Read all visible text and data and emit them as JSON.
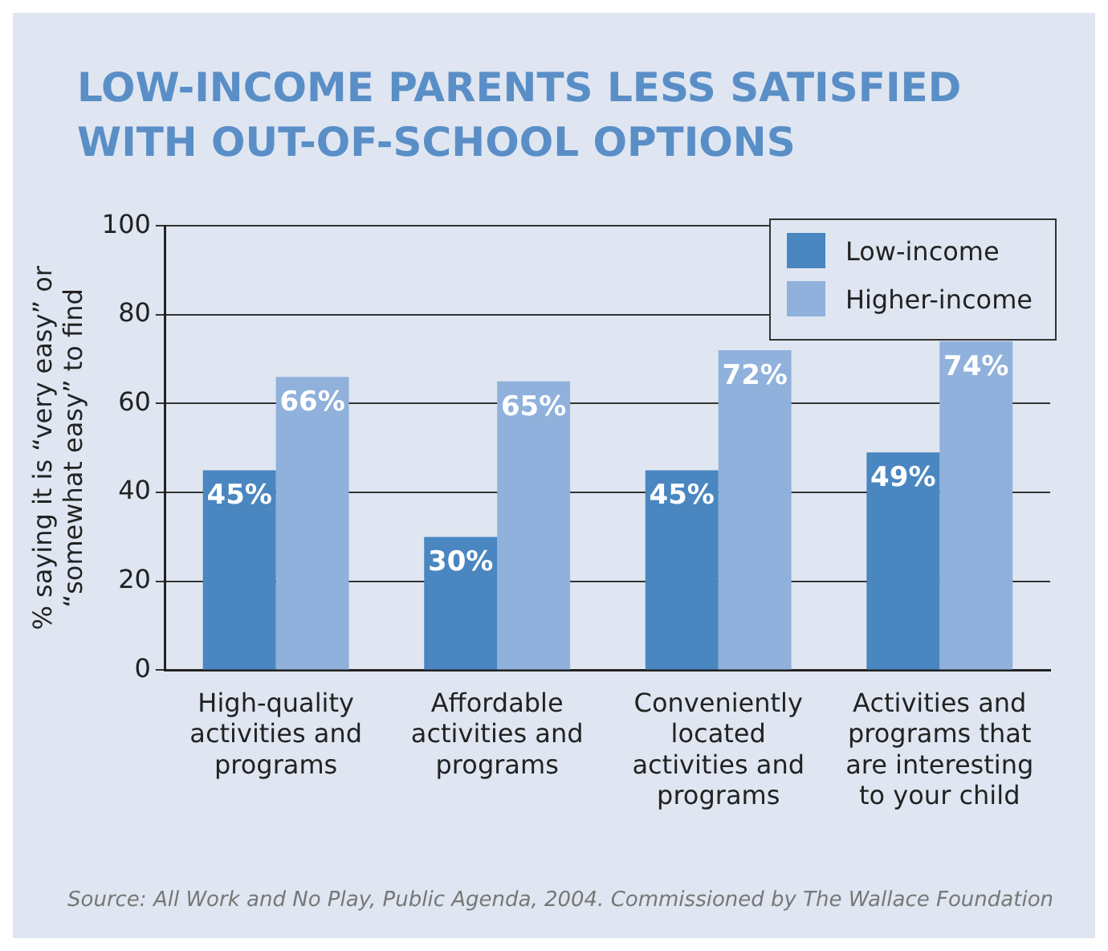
{
  "chart_data": {
    "type": "bar",
    "title": "LOW-INCOME PARENTS LESS SATISFIED WITH OUT-OF-SCHOOL OPTIONS",
    "ylabel": "% saying it is “very easy” or “somewhat easy” to find",
    "categories": [
      "High-quality activities and programs",
      "Affordable activities and programs",
      "Conveniently located activities and programs",
      "Activities and programs that are interesting to your child"
    ],
    "series": [
      {
        "name": "Low-income",
        "color": "#4a86c0",
        "values": [
          45,
          30,
          45,
          49
        ],
        "value_labels": [
          "45%",
          "30%",
          "45%",
          "49%"
        ]
      },
      {
        "name": "Higher-income",
        "color": "#8fb1db",
        "values": [
          66,
          65,
          72,
          74
        ],
        "value_labels": [
          "66%",
          "65%",
          "72%",
          "74%"
        ]
      }
    ],
    "ylim": [
      0,
      100
    ],
    "yticks": [
      0,
      20,
      40,
      60,
      80,
      100
    ],
    "grid": "y",
    "legend": "top right",
    "annotations": [
      "Source: All Work and No Play, Public Agenda, 2004. Commissioned by The Wallace Foundation"
    ]
  }
}
